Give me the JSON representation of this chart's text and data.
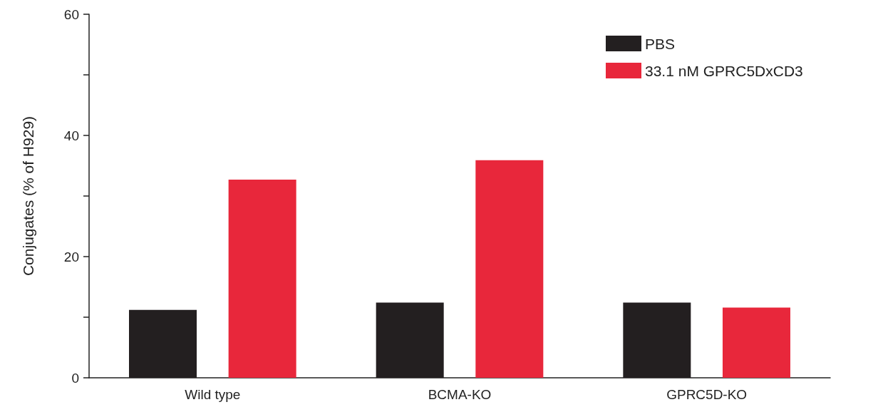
{
  "chart_data": {
    "type": "bar",
    "ylabel": "Conjugates (% of H929)",
    "categories": [
      "Wild type",
      "BCMA-KO",
      "GPRC5D-KO"
    ],
    "series": [
      {
        "name": "PBS",
        "color": "#231f20",
        "values": [
          11.2,
          12.4,
          12.4
        ]
      },
      {
        "name": "33.1 nM GPRC5DxCD3",
        "color": "#e8273b",
        "values": [
          32.7,
          35.9,
          11.6
        ]
      }
    ],
    "ylim": [
      0,
      60
    ],
    "yticks": [
      0,
      {
        "value": 10,
        "label": null
      },
      20,
      {
        "value": 30,
        "label": null
      },
      40,
      {
        "value": 50,
        "label": null
      },
      60
    ],
    "grid": false,
    "legend": "top right"
  }
}
